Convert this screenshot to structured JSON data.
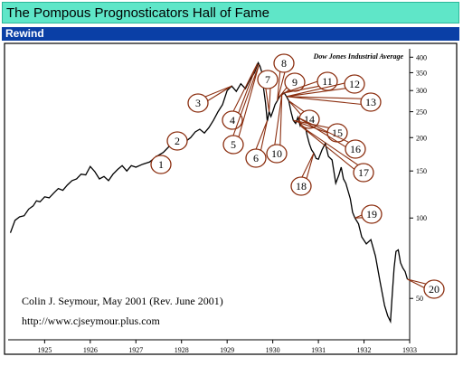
{
  "header": {
    "title": "The Pompous Prognosticators Hall of Fame",
    "section": "Rewind"
  },
  "chart_data": {
    "type": "line",
    "title": "Dow Jones Industrial Average",
    "y_scale": "log",
    "ylim": [
      35,
      430
    ],
    "xlim": [
      1924.2,
      1933.0
    ],
    "yticks": [
      400,
      350,
      300,
      250,
      200,
      150,
      100,
      50
    ],
    "xticks": [
      1925,
      1926,
      1927,
      1928,
      1929,
      1930,
      1931,
      1932,
      1933
    ],
    "credit_line1": "Colin J. Seymour, May 2001    (Rev. June 2001)",
    "credit_line2": "http://www.cjseymour.plus.com",
    "series": [
      {
        "values": [
          [
            1924.25,
            88
          ],
          [
            1924.35,
            98
          ],
          [
            1924.45,
            101
          ],
          [
            1924.55,
            102
          ],
          [
            1924.65,
            108
          ],
          [
            1924.75,
            111
          ],
          [
            1924.82,
            116
          ],
          [
            1924.9,
            115
          ],
          [
            1925.0,
            120
          ],
          [
            1925.1,
            119
          ],
          [
            1925.2,
            124
          ],
          [
            1925.3,
            129
          ],
          [
            1925.4,
            127
          ],
          [
            1925.5,
            133
          ],
          [
            1925.6,
            138
          ],
          [
            1925.7,
            140
          ],
          [
            1925.8,
            146
          ],
          [
            1925.9,
            145
          ],
          [
            1926.0,
            156
          ],
          [
            1926.1,
            149
          ],
          [
            1926.2,
            140
          ],
          [
            1926.3,
            143
          ],
          [
            1926.4,
            138
          ],
          [
            1926.5,
            146
          ],
          [
            1926.6,
            152
          ],
          [
            1926.7,
            157
          ],
          [
            1926.8,
            150
          ],
          [
            1926.9,
            157
          ],
          [
            1927.0,
            155
          ],
          [
            1927.15,
            159
          ],
          [
            1927.3,
            162
          ],
          [
            1927.45,
            170
          ],
          [
            1927.6,
            176
          ],
          [
            1927.75,
            187
          ],
          [
            1927.9,
            192
          ],
          [
            1928.0,
            198
          ],
          [
            1928.1,
            194
          ],
          [
            1928.2,
            200
          ],
          [
            1928.3,
            210
          ],
          [
            1928.4,
            215
          ],
          [
            1928.5,
            208
          ],
          [
            1928.6,
            218
          ],
          [
            1928.7,
            232
          ],
          [
            1928.8,
            250
          ],
          [
            1928.9,
            266
          ],
          [
            1929.0,
            300
          ],
          [
            1929.1,
            312
          ],
          [
            1929.2,
            298
          ],
          [
            1929.3,
            318
          ],
          [
            1929.4,
            305
          ],
          [
            1929.5,
            330
          ],
          [
            1929.6,
            350
          ],
          [
            1929.68,
            381
          ],
          [
            1929.72,
            370
          ],
          [
            1929.76,
            352
          ],
          [
            1929.8,
            305
          ],
          [
            1929.84,
            270
          ],
          [
            1929.88,
            230
          ],
          [
            1929.92,
            250
          ],
          [
            1929.96,
            240
          ],
          [
            1930.0,
            250
          ],
          [
            1930.05,
            266
          ],
          [
            1930.1,
            275
          ],
          [
            1930.15,
            285
          ],
          [
            1930.2,
            290
          ],
          [
            1930.25,
            294
          ],
          [
            1930.3,
            285
          ],
          [
            1930.35,
            275
          ],
          [
            1930.4,
            250
          ],
          [
            1930.45,
            232
          ],
          [
            1930.5,
            226
          ],
          [
            1930.55,
            238
          ],
          [
            1930.6,
            222
          ],
          [
            1930.65,
            232
          ],
          [
            1930.7,
            224
          ],
          [
            1930.75,
            205
          ],
          [
            1930.8,
            190
          ],
          [
            1930.85,
            180
          ],
          [
            1930.9,
            175
          ],
          [
            1930.95,
            167
          ],
          [
            1931.0,
            166
          ],
          [
            1931.08,
            180
          ],
          [
            1931.15,
            190
          ],
          [
            1931.22,
            170
          ],
          [
            1931.3,
            165
          ],
          [
            1931.38,
            135
          ],
          [
            1931.45,
            145
          ],
          [
            1931.5,
            155
          ],
          [
            1931.55,
            140
          ],
          [
            1931.6,
            135
          ],
          [
            1931.7,
            118
          ],
          [
            1931.75,
            105
          ],
          [
            1931.8,
            100
          ],
          [
            1931.88,
            95
          ],
          [
            1931.95,
            85
          ],
          [
            1932.05,
            80
          ],
          [
            1932.15,
            83
          ],
          [
            1932.25,
            72
          ],
          [
            1932.35,
            58
          ],
          [
            1932.45,
            47
          ],
          [
            1932.52,
            43
          ],
          [
            1932.58,
            41
          ],
          [
            1932.62,
            52
          ],
          [
            1932.66,
            65
          ],
          [
            1932.7,
            75
          ],
          [
            1932.75,
            76
          ],
          [
            1932.8,
            68
          ],
          [
            1932.85,
            65
          ],
          [
            1932.9,
            63
          ],
          [
            1932.95,
            59
          ]
        ]
      }
    ],
    "annotations": [
      {
        "label": "1",
        "x": 1927.45,
        "y": 170
      },
      {
        "label": "2",
        "x": 1928.0,
        "y": 198
      },
      {
        "label": "3",
        "x": 1929.1,
        "y": 312
      },
      {
        "label": "4",
        "x": 1929.66,
        "y": 378
      },
      {
        "label": "5",
        "x": 1929.7,
        "y": 376
      },
      {
        "label": "6",
        "x": 1929.88,
        "y": 232
      },
      {
        "label": "7",
        "x": 1929.92,
        "y": 250
      },
      {
        "label": "8",
        "x": 1930.1,
        "y": 275
      },
      {
        "label": "9",
        "x": 1930.15,
        "y": 285
      },
      {
        "label": "10",
        "x": 1930.2,
        "y": 290
      },
      {
        "label": "11",
        "x": 1930.25,
        "y": 294
      },
      {
        "label": "12",
        "x": 1930.3,
        "y": 285
      },
      {
        "label": "13",
        "x": 1930.3,
        "y": 285
      },
      {
        "label": "14",
        "x": 1930.35,
        "y": 275
      },
      {
        "label": "15",
        "x": 1930.45,
        "y": 232
      },
      {
        "label": "16",
        "x": 1930.55,
        "y": 238
      },
      {
        "label": "17",
        "x": 1930.6,
        "y": 222
      },
      {
        "label": "18",
        "x": 1930.9,
        "y": 175
      },
      {
        "label": "19",
        "x": 1931.8,
        "y": 100
      },
      {
        "label": "20",
        "x": 1932.95,
        "y": 59
      }
    ]
  }
}
